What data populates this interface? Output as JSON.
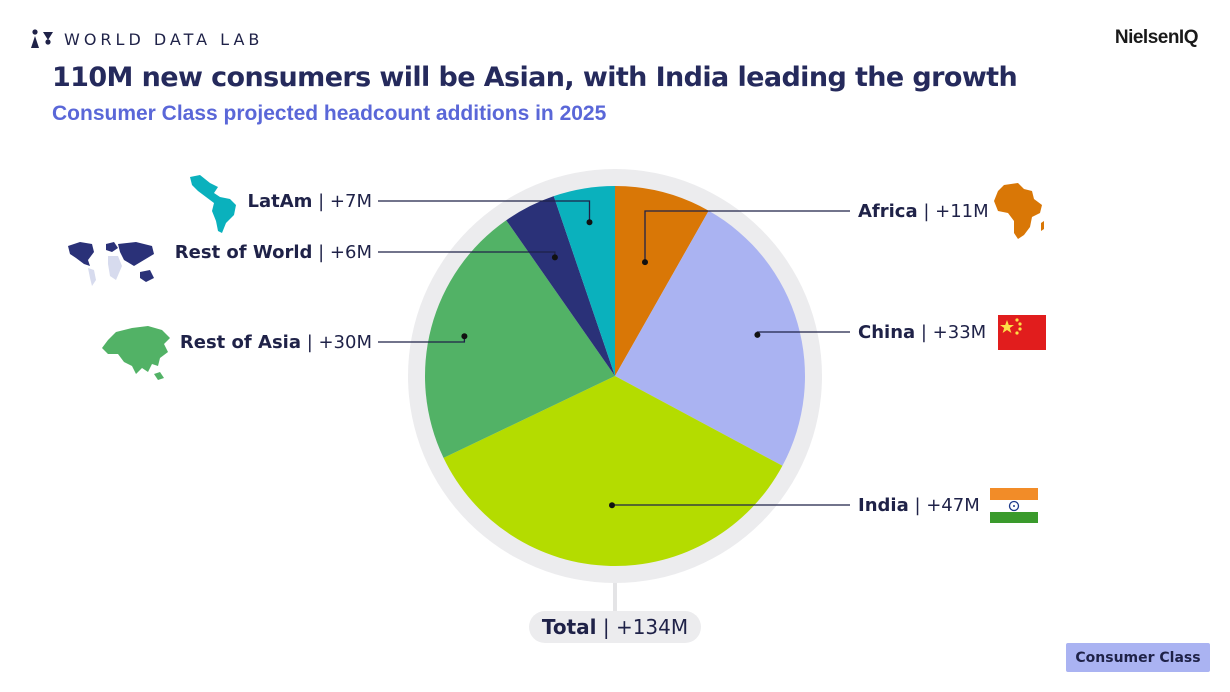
{
  "header": {
    "brand": "WORLD DATA LAB",
    "partner": "NielsenIQ",
    "title": "110M new consumers will be Asian, with India leading the growth",
    "subtitle": "Consumer Class projected headcount additions in 2025"
  },
  "chart_data": {
    "type": "pie",
    "title": "110M new consumers will be Asian, with India leading the growth",
    "subtitle": "Consumer Class projected headcount additions in 2025",
    "unit": "M",
    "start_angle": "12 o'clock, clockwise",
    "slices": [
      {
        "name": "Africa",
        "value": 11,
        "label": "+11M",
        "color": "#d97706",
        "icon": "africa-map-icon"
      },
      {
        "name": "China",
        "value": 33,
        "label": "+33M",
        "color": "#aab3f2",
        "icon": "china-flag-icon"
      },
      {
        "name": "India",
        "value": 47,
        "label": "+47M",
        "color": "#b4dc00",
        "icon": "india-flag-icon"
      },
      {
        "name": "Rest of Asia",
        "value": 30,
        "label": "+30M",
        "color": "#52b266",
        "icon": "asia-map-icon"
      },
      {
        "name": "Rest of World",
        "value": 6,
        "label": "+6M",
        "color": "#2a3178",
        "icon": "world-map-icon"
      },
      {
        "name": "LatAm",
        "value": 7,
        "label": "+7M",
        "color": "#0ab1bd",
        "icon": "latam-map-icon"
      }
    ],
    "total": {
      "name": "Total",
      "label": "+134M"
    }
  },
  "footer": {
    "tag": "Consumer Class"
  }
}
